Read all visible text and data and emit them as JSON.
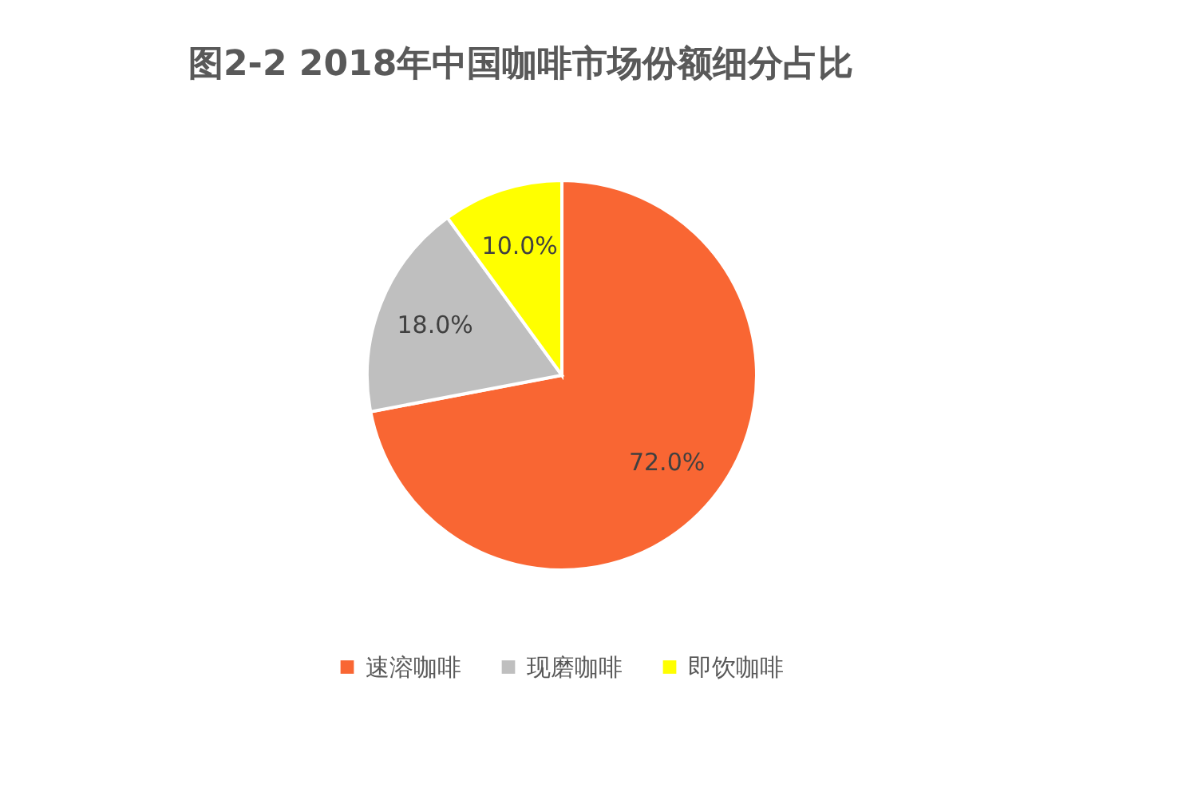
{
  "chart_data": {
    "type": "pie",
    "title": "图2-2 2018年中国咖啡市场份额细分占比",
    "categories": [
      "速溶咖啡",
      "现磨咖啡",
      "即饮咖啡"
    ],
    "values": [
      72,
      18,
      10
    ],
    "colors": [
      "#f96633",
      "#bfbfbf",
      "#ffff00"
    ],
    "value_labels": [
      "72.0%",
      "18.0%",
      "10.0%"
    ],
    "legend": "bottom"
  }
}
